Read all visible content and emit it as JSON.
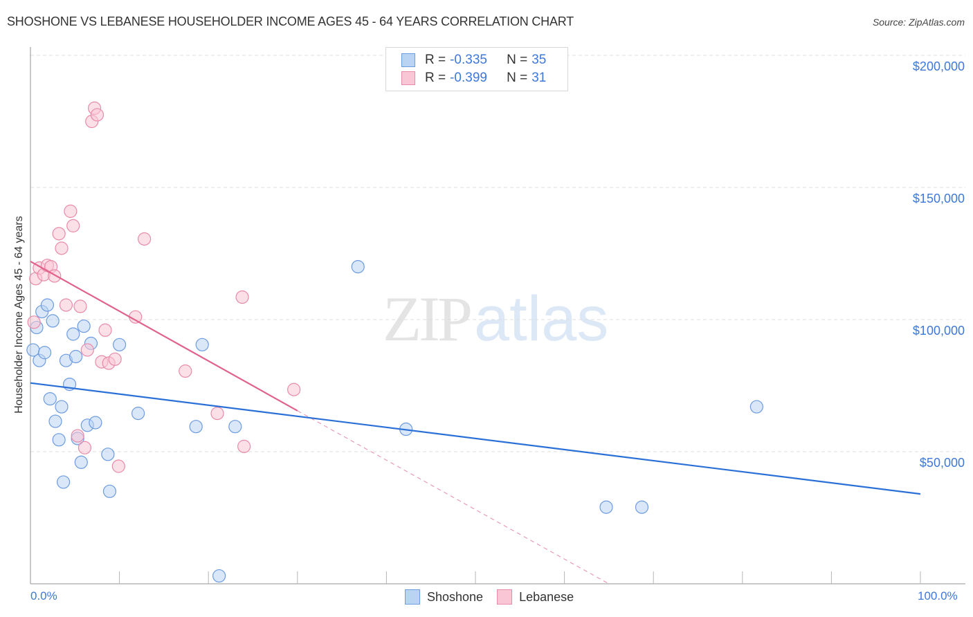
{
  "header": {
    "title": "SHOSHONE VS LEBANESE HOUSEHOLDER INCOME AGES 45 - 64 YEARS CORRELATION CHART",
    "source": "Source: ZipAtlas.com"
  },
  "legend_top": {
    "rows": [
      {
        "r_label": "R =",
        "r_value": "-0.335",
        "n_label": "N =",
        "n_value": "35",
        "color": "#b9d3f3",
        "border": "#6c9be0"
      },
      {
        "r_label": "R =",
        "r_value": "-0.399",
        "n_label": "N =",
        "n_value": "31",
        "color": "#f9c6d6",
        "border": "#e88aa8"
      }
    ]
  },
  "legend_bottom": {
    "items": [
      {
        "label": "Shoshone",
        "color": "#b9d3f3",
        "border": "#6c9be0"
      },
      {
        "label": "Lebanese",
        "color": "#f9c6d6",
        "border": "#e88aa8"
      }
    ]
  },
  "axes": {
    "y_title": "Householder Income Ages 45 - 64 years",
    "y_ticks": [
      "$200,000",
      "$150,000",
      "$100,000",
      "$50,000"
    ],
    "x_min_label": "0.0%",
    "x_max_label": "100.0%"
  },
  "watermark": {
    "zip": "ZIP",
    "atlas": "atlas"
  },
  "chart_data": {
    "type": "scatter",
    "title": "SHOSHONE VS LEBANESE HOUSEHOLDER INCOME AGES 45 - 64 YEARS CORRELATION CHART",
    "xlabel": "",
    "ylabel": "Householder Income Ages 45 - 64 years",
    "xlim": [
      0,
      100
    ],
    "ylim": [
      0,
      210000
    ],
    "x_unit": "%",
    "y_ticks": [
      50000,
      100000,
      150000,
      200000
    ],
    "grid": true,
    "legend_position": "top-center and bottom",
    "series": [
      {
        "name": "Shoshone",
        "color": "#6c9be0",
        "R": -0.335,
        "N": 35,
        "trend": {
          "x": [
            0,
            100
          ],
          "y": [
            76000,
            34000
          ]
        },
        "points": [
          {
            "x": 0.3,
            "y": 88500
          },
          {
            "x": 0.7,
            "y": 97000
          },
          {
            "x": 1.0,
            "y": 84500
          },
          {
            "x": 1.3,
            "y": 103000
          },
          {
            "x": 1.6,
            "y": 87500
          },
          {
            "x": 1.9,
            "y": 105500
          },
          {
            "x": 2.2,
            "y": 70000
          },
          {
            "x": 2.5,
            "y": 99500
          },
          {
            "x": 2.8,
            "y": 61500
          },
          {
            "x": 3.2,
            "y": 54500
          },
          {
            "x": 3.5,
            "y": 67000
          },
          {
            "x": 3.7,
            "y": 38500
          },
          {
            "x": 4.0,
            "y": 84500
          },
          {
            "x": 4.4,
            "y": 75500
          },
          {
            "x": 4.8,
            "y": 94500
          },
          {
            "x": 5.1,
            "y": 86000
          },
          {
            "x": 5.3,
            "y": 55000
          },
          {
            "x": 5.7,
            "y": 46000
          },
          {
            "x": 6.0,
            "y": 97500
          },
          {
            "x": 6.4,
            "y": 60000
          },
          {
            "x": 6.8,
            "y": 91000
          },
          {
            "x": 7.3,
            "y": 61000
          },
          {
            "x": 8.7,
            "y": 49000
          },
          {
            "x": 8.9,
            "y": 35000
          },
          {
            "x": 10.0,
            "y": 90500
          },
          {
            "x": 12.1,
            "y": 64500
          },
          {
            "x": 18.6,
            "y": 59500
          },
          {
            "x": 19.3,
            "y": 90500
          },
          {
            "x": 21.2,
            "y": 3000
          },
          {
            "x": 23.0,
            "y": 59500
          },
          {
            "x": 36.8,
            "y": 120000
          },
          {
            "x": 42.2,
            "y": 58500
          },
          {
            "x": 64.7,
            "y": 29000
          },
          {
            "x": 68.7,
            "y": 29000
          },
          {
            "x": 81.6,
            "y": 67000
          }
        ]
      },
      {
        "name": "Lebanese",
        "color": "#e88aa8",
        "R": -0.399,
        "N": 31,
        "trend": {
          "x": [
            0,
            30
          ],
          "y": [
            122000,
            65500
          ]
        },
        "trend_extension_dashed": {
          "x": [
            30,
            65
          ],
          "y": [
            65500,
            0
          ]
        },
        "points": [
          {
            "x": 0.4,
            "y": 99000
          },
          {
            "x": 0.6,
            "y": 115500
          },
          {
            "x": 1.0,
            "y": 119500
          },
          {
            "x": 1.5,
            "y": 117000
          },
          {
            "x": 1.9,
            "y": 120500
          },
          {
            "x": 2.3,
            "y": 120000
          },
          {
            "x": 2.7,
            "y": 116500
          },
          {
            "x": 3.2,
            "y": 132500
          },
          {
            "x": 3.5,
            "y": 127000
          },
          {
            "x": 4.0,
            "y": 105500
          },
          {
            "x": 4.5,
            "y": 141000
          },
          {
            "x": 4.8,
            "y": 135500
          },
          {
            "x": 5.3,
            "y": 56000
          },
          {
            "x": 5.6,
            "y": 105000
          },
          {
            "x": 6.1,
            "y": 51500
          },
          {
            "x": 6.4,
            "y": 88500
          },
          {
            "x": 6.9,
            "y": 175000
          },
          {
            "x": 7.2,
            "y": 180000
          },
          {
            "x": 7.5,
            "y": 177500
          },
          {
            "x": 8.0,
            "y": 84000
          },
          {
            "x": 8.4,
            "y": 96000
          },
          {
            "x": 8.8,
            "y": 83500
          },
          {
            "x": 9.5,
            "y": 85000
          },
          {
            "x": 9.9,
            "y": 44500
          },
          {
            "x": 11.8,
            "y": 101000
          },
          {
            "x": 12.8,
            "y": 130500
          },
          {
            "x": 17.4,
            "y": 80500
          },
          {
            "x": 21.0,
            "y": 64500
          },
          {
            "x": 23.8,
            "y": 108500
          },
          {
            "x": 24.0,
            "y": 52000
          },
          {
            "x": 29.6,
            "y": 73500
          }
        ]
      }
    ]
  }
}
